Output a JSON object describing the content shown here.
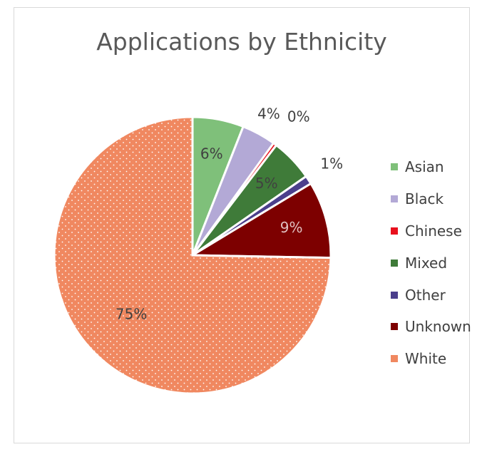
{
  "chart_data": {
    "type": "pie",
    "title": "Applications by Ethnicity",
    "slices": [
      {
        "name": "Asian",
        "value": 6,
        "label": "6%",
        "color": "#7fc07a"
      },
      {
        "name": "Black",
        "value": 4,
        "label": "4%",
        "color": "#b3a9d6"
      },
      {
        "name": "Chinese",
        "value": 0.4,
        "label": "0%",
        "color": "#e8101d"
      },
      {
        "name": "Mixed",
        "value": 5,
        "label": "5%",
        "color": "#3f7b39"
      },
      {
        "name": "Other",
        "value": 1,
        "label": "1%",
        "color": "#4b3f8c"
      },
      {
        "name": "Unknown",
        "value": 9,
        "label": "9%",
        "color": "#7d0000"
      },
      {
        "name": "White",
        "value": 75,
        "label": "75%",
        "color": "#f08860"
      }
    ],
    "legend_position": "right"
  }
}
